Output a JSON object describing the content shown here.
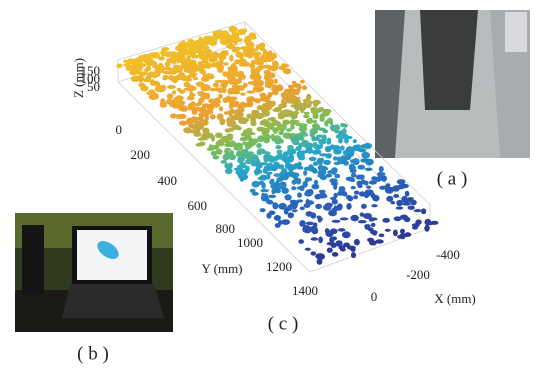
{
  "panel_a": {
    "caption": "( a )"
  },
  "panel_b": {
    "caption": "( b )"
  },
  "panel_c": {
    "caption": "( c )",
    "z_axis": {
      "label": "Z (mm)",
      "ticks": [
        150,
        100,
        50
      ]
    },
    "y_axis": {
      "label": "Y (mm)",
      "ticks": [
        0,
        200,
        400,
        600,
        800,
        1000,
        1200,
        1400
      ]
    },
    "x_axis": {
      "label": "X (mm)",
      "ticks": [
        -400,
        -200,
        0
      ]
    }
  }
}
